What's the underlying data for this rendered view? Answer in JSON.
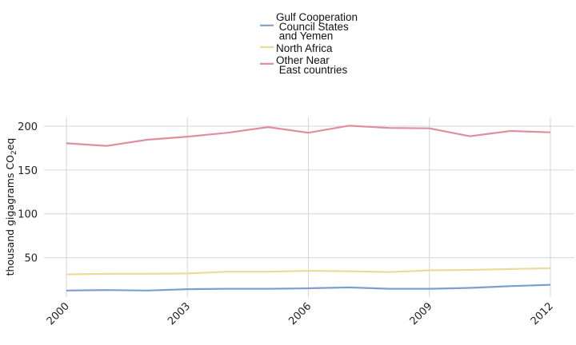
{
  "chart_data": {
    "type": "line",
    "x": [
      2000,
      2001,
      2002,
      2003,
      2004,
      2005,
      2006,
      2007,
      2008,
      2009,
      2010,
      2011,
      2012
    ],
    "series": [
      {
        "name": "Gulf Cooperation Council States and Yemen",
        "legend_lines": [
          "Gulf Cooperation",
          " Council States",
          " and Yemen"
        ],
        "color": "#7c9fcf",
        "values": [
          12.5,
          13.0,
          12.5,
          14.0,
          14.5,
          14.5,
          15.0,
          16.0,
          14.5,
          14.5,
          15.5,
          17.5,
          19.0
        ]
      },
      {
        "name": "North Africa",
        "legend_lines": [
          "North Africa"
        ],
        "color": "#ebdb9a",
        "values": [
          31.0,
          31.5,
          31.5,
          32.0,
          34.0,
          34.0,
          35.0,
          34.5,
          33.5,
          35.5,
          36.0,
          37.0,
          38.0
        ]
      },
      {
        "name": "Other Near East countries",
        "legend_lines": [
          "Other Near",
          " East countries"
        ],
        "color": "#df8f9c",
        "values": [
          180.5,
          177.5,
          184.5,
          188.0,
          192.5,
          199.0,
          192.5,
          200.5,
          198.0,
          197.5,
          188.5,
          194.5,
          193.0
        ]
      }
    ],
    "ylabel": "thousand gigagrams CO",
    "ylabel_sub": "2",
    "ylabel_suffix": "eq",
    "yticks": [
      50,
      100,
      150,
      200
    ],
    "xticks": [
      2000,
      2003,
      2006,
      2009,
      2012
    ],
    "ylim": [
      5,
      210
    ],
    "xlim": [
      2000,
      2012
    ],
    "grid": true,
    "legend_position": "top-center"
  }
}
